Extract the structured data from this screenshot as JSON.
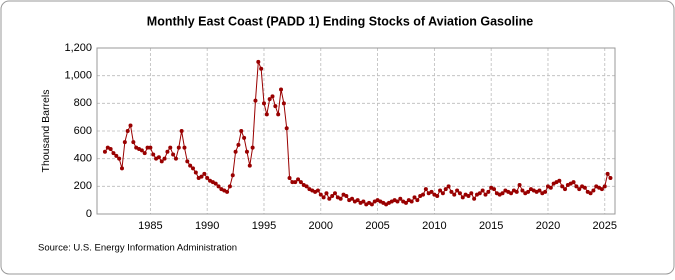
{
  "chart_data": {
    "type": "line",
    "title": "Monthly East Coast (PADD 1) Ending Stocks of Aviation Gasoline",
    "y_label": "Thousand Barrels",
    "source": "Source: U.S. Energy Information Administration",
    "x": [
      1981,
      1981.25,
      1981.5,
      1981.75,
      1982,
      1982.25,
      1982.5,
      1982.75,
      1983,
      1983.25,
      1983.5,
      1983.75,
      1984,
      1984.25,
      1984.5,
      1984.75,
      1985,
      1985.25,
      1985.5,
      1985.75,
      1986,
      1986.25,
      1986.5,
      1986.75,
      1987,
      1987.25,
      1987.5,
      1987.75,
      1988,
      1988.25,
      1988.5,
      1988.75,
      1989,
      1989.25,
      1989.5,
      1989.75,
      1990,
      1990.25,
      1990.5,
      1990.75,
      1991,
      1991.25,
      1991.5,
      1991.75,
      1992,
      1992.25,
      1992.5,
      1992.75,
      1993,
      1993.25,
      1993.5,
      1993.75,
      1994,
      1994.25,
      1994.5,
      1994.75,
      1995,
      1995.25,
      1995.5,
      1995.75,
      1996,
      1996.25,
      1996.5,
      1996.75,
      1997,
      1997.25,
      1997.5,
      1997.75,
      1998,
      1998.25,
      1998.5,
      1998.75,
      1999,
      1999.25,
      1999.5,
      1999.75,
      2000,
      2000.25,
      2000.5,
      2000.75,
      2001,
      2001.25,
      2001.5,
      2001.75,
      2002,
      2002.25,
      2002.5,
      2002.75,
      2003,
      2003.25,
      2003.5,
      2003.75,
      2004,
      2004.25,
      2004.5,
      2004.75,
      2005,
      2005.25,
      2005.5,
      2005.75,
      2006,
      2006.25,
      2006.5,
      2006.75,
      2007,
      2007.25,
      2007.5,
      2007.75,
      2008,
      2008.25,
      2008.5,
      2008.75,
      2009,
      2009.25,
      2009.5,
      2009.75,
      2010,
      2010.25,
      2010.5,
      2010.75,
      2011,
      2011.25,
      2011.5,
      2011.75,
      2012,
      2012.25,
      2012.5,
      2012.75,
      2013,
      2013.25,
      2013.5,
      2013.75,
      2014,
      2014.25,
      2014.5,
      2014.75,
      2015,
      2015.25,
      2015.5,
      2015.75,
      2016,
      2016.25,
      2016.5,
      2016.75,
      2017,
      2017.25,
      2017.5,
      2017.75,
      2018,
      2018.25,
      2018.5,
      2018.75,
      2019,
      2019.25,
      2019.5,
      2019.75,
      2020,
      2020.25,
      2020.5,
      2020.75,
      2021,
      2021.25,
      2021.5,
      2021.75,
      2022,
      2022.25,
      2022.5,
      2022.75,
      2023,
      2023.25,
      2023.5,
      2023.75,
      2024,
      2024.25,
      2024.5,
      2024.75,
      2025,
      2025.25,
      2025.5
    ],
    "series": [
      {
        "color": "#990000",
        "values": [
          450,
          480,
          470,
          440,
          420,
          400,
          330,
          520,
          600,
          640,
          520,
          480,
          470,
          460,
          440,
          480,
          480,
          430,
          400,
          410,
          380,
          400,
          450,
          480,
          430,
          400,
          480,
          600,
          480,
          380,
          350,
          330,
          300,
          260,
          270,
          290,
          260,
          240,
          230,
          220,
          200,
          180,
          170,
          160,
          200,
          280,
          450,
          500,
          600,
          550,
          450,
          350,
          480,
          820,
          1100,
          1050,
          800,
          720,
          830,
          850,
          780,
          720,
          900,
          800,
          620,
          260,
          230,
          230,
          250,
          230,
          210,
          200,
          180,
          170,
          160,
          170,
          140,
          120,
          150,
          110,
          130,
          150,
          120,
          110,
          140,
          130,
          100,
          110,
          90,
          100,
          80,
          90,
          70,
          80,
          70,
          90,
          100,
          90,
          80,
          70,
          80,
          90,
          100,
          90,
          110,
          90,
          80,
          100,
          90,
          120,
          100,
          130,
          140,
          180,
          150,
          160,
          140,
          130,
          170,
          150,
          180,
          200,
          160,
          140,
          170,
          150,
          120,
          140,
          130,
          150,
          110,
          140,
          150,
          170,
          140,
          160,
          190,
          180,
          150,
          140,
          150,
          170,
          160,
          150,
          170,
          160,
          210,
          170,
          150,
          160,
          180,
          170,
          160,
          170,
          150,
          160,
          200,
          190,
          220,
          230,
          240,
          200,
          180,
          210,
          220,
          230,
          200,
          180,
          200,
          190,
          160,
          150,
          170,
          200,
          190,
          180,
          200,
          290,
          260
        ]
      }
    ],
    "xlim": [
      1980.3,
      2025.9
    ],
    "ylim": [
      0,
      1200
    ],
    "xticks": [
      1985,
      1990,
      1995,
      2000,
      2005,
      2010,
      2015,
      2020,
      2025
    ],
    "yticks": [
      0,
      200,
      400,
      600,
      800,
      {
        "value": 1000,
        "label": "1,000"
      },
      {
        "value": 1200,
        "label": "1,200"
      }
    ],
    "grid": true
  }
}
